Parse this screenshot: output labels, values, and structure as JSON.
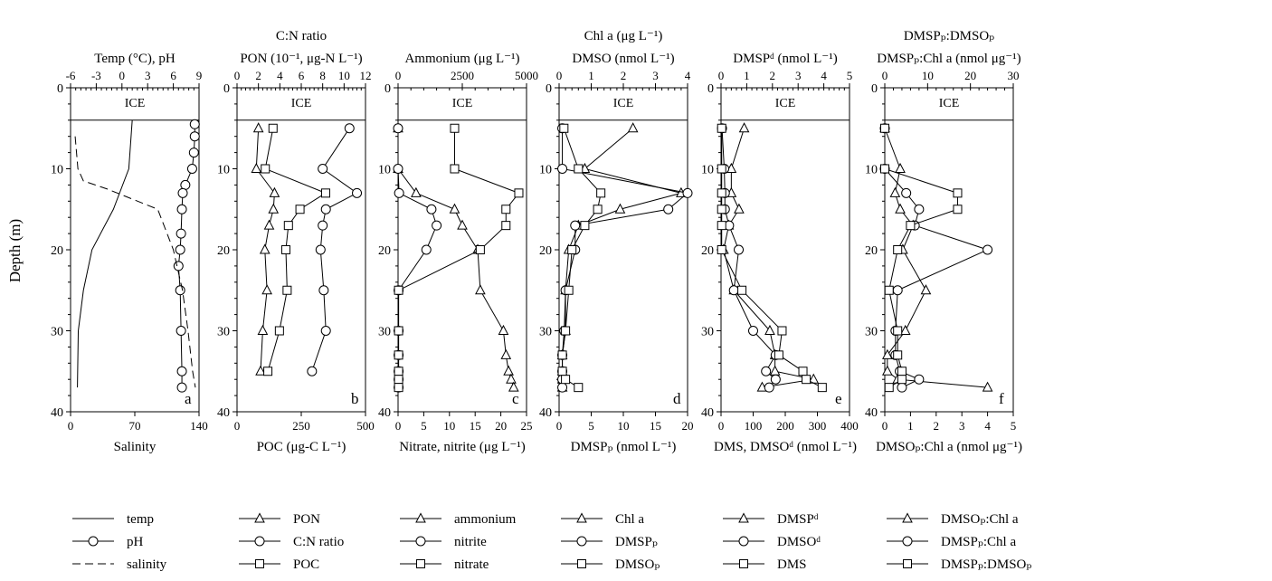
{
  "shared": {
    "depth_label": "Depth (m)",
    "depth_ticks": [
      0,
      10,
      20,
      30,
      40
    ],
    "ylim": [
      0,
      40
    ],
    "ice_label": "ICE",
    "ice_depth": 4
  },
  "chart_data": [
    {
      "id": "a",
      "type": "line",
      "panel_label": "a",
      "top_labels": [
        "Temp (°C), pH"
      ],
      "bottom_label": "Salinity",
      "top_axis": {
        "min": -6,
        "max": 9,
        "ticks": [
          -6,
          -3,
          0,
          3,
          6,
          9
        ]
      },
      "bottom_axis": {
        "min": 0,
        "max": 140,
        "ticks": [
          0,
          70,
          140
        ]
      },
      "series": [
        {
          "name": "temp",
          "marker": "none",
          "dash": false,
          "axis": "top",
          "x": [
            1.2,
            0.8,
            -1.0,
            -3.5,
            -4.5,
            -5.1,
            -5.2
          ],
          "y": [
            4,
            10,
            15,
            20,
            25,
            30,
            37
          ]
        },
        {
          "name": "pH",
          "marker": "circle",
          "dash": false,
          "axis": "top",
          "x": [
            8.5,
            8.5,
            8.4,
            8.2,
            7.4,
            7.1,
            7.0,
            6.9,
            6.8,
            6.6,
            6.8,
            6.9,
            7.0,
            7.0
          ],
          "y": [
            4.5,
            6,
            8,
            10,
            12,
            13,
            15,
            18,
            20,
            22,
            25,
            30,
            35,
            37
          ]
        },
        {
          "name": "salinity",
          "marker": "none",
          "dash": true,
          "axis": "bottom",
          "x": [
            5,
            8,
            14,
            40,
            95,
            112,
            122,
            128,
            133,
            136
          ],
          "y": [
            6,
            10,
            11.5,
            12.5,
            15,
            20,
            25,
            30,
            35,
            37
          ]
        }
      ]
    },
    {
      "id": "b",
      "type": "line",
      "panel_label": "b",
      "top_labels": [
        "C:N ratio",
        "PON (10⁻¹, μg-N L⁻¹)"
      ],
      "bottom_label": "POC (μg-C L⁻¹)",
      "top_axis": {
        "min": 0,
        "max": 12,
        "ticks": [
          0,
          2,
          4,
          6,
          8,
          10,
          12
        ]
      },
      "bottom_axis": {
        "min": 0,
        "max": 500,
        "ticks": [
          0,
          250,
          500
        ]
      },
      "series": [
        {
          "name": "PON",
          "marker": "triangle",
          "axis": "top",
          "x": [
            2.0,
            1.8,
            3.5,
            3.4,
            3.0,
            2.6,
            2.8,
            2.4,
            2.2
          ],
          "y": [
            5,
            10,
            13,
            15,
            17,
            20,
            25,
            30,
            35
          ]
        },
        {
          "name": "C:N ratio",
          "marker": "circle",
          "axis": "top",
          "x": [
            10.5,
            8.0,
            11.2,
            8.3,
            8.0,
            7.8,
            8.1,
            8.3,
            7.0
          ],
          "y": [
            5,
            10,
            13,
            15,
            17,
            20,
            25,
            30,
            35
          ]
        },
        {
          "name": "POC",
          "marker": "square",
          "axis": "bottom",
          "x": [
            140,
            110,
            345,
            245,
            200,
            190,
            195,
            165,
            120
          ],
          "y": [
            5,
            10,
            13,
            15,
            17,
            20,
            25,
            30,
            35
          ]
        }
      ]
    },
    {
      "id": "c",
      "type": "line",
      "panel_label": "c",
      "top_labels": [
        "Ammonium (μg L⁻¹)"
      ],
      "bottom_label": "Nitrate, nitrite (μg L⁻¹)",
      "top_axis": {
        "min": 0,
        "max": 5000,
        "ticks": [
          0,
          2500,
          5000
        ]
      },
      "bottom_axis": {
        "min": 0,
        "max": 25,
        "ticks": [
          0,
          5,
          10,
          15,
          20,
          25
        ]
      },
      "series": [
        {
          "name": "ammonium",
          "marker": "triangle",
          "axis": "top",
          "x": [
            0,
            0,
            700,
            2200,
            2500,
            3100,
            3200,
            4100,
            4200,
            4300,
            4400,
            4500
          ],
          "y": [
            5,
            10,
            13,
            15,
            17,
            20,
            25,
            30,
            33,
            35,
            36,
            37
          ]
        },
        {
          "name": "nitrite",
          "marker": "circle",
          "axis": "bottom",
          "x": [
            0,
            0,
            0.2,
            6.5,
            7.5,
            5.5,
            0.1,
            0.1,
            0.1,
            0.1,
            0.1,
            0.1
          ],
          "y": [
            5,
            10,
            13,
            15,
            17,
            20,
            25,
            30,
            33,
            35,
            36,
            37
          ]
        },
        {
          "name": "nitrate",
          "marker": "square",
          "axis": "bottom",
          "x": [
            11,
            11,
            23.5,
            21,
            21,
            16,
            0.1,
            0.1,
            0.1,
            0.1,
            0.1,
            0.1
          ],
          "y": [
            5,
            10,
            13,
            15,
            17,
            20,
            25,
            30,
            33,
            35,
            36,
            37
          ]
        }
      ]
    },
    {
      "id": "d",
      "type": "line",
      "panel_label": "d",
      "top_labels": [
        "Chl a (μg L⁻¹)",
        "DMSO (nmol L⁻¹)"
      ],
      "bottom_label": "DMSPₚ (nmol L⁻¹)",
      "top_axis": {
        "min": 0,
        "max": 4,
        "ticks": [
          0,
          1,
          2,
          3,
          4
        ]
      },
      "bottom_axis": {
        "min": 0,
        "max": 20,
        "ticks": [
          0,
          5,
          10,
          15,
          20
        ]
      },
      "series": [
        {
          "name": "Chl a",
          "marker": "triangle",
          "axis": "top",
          "x": [
            2.3,
            0.8,
            3.8,
            1.9,
            0.6,
            0.3,
            0.2,
            0.2,
            0.1,
            0.1,
            0.1,
            0.1
          ],
          "y": [
            5,
            10,
            13,
            15,
            17,
            20,
            25,
            30,
            33,
            35,
            36,
            37
          ]
        },
        {
          "name": "DMSPₚ",
          "marker": "circle",
          "axis": "bottom",
          "x": [
            0.5,
            0.5,
            20,
            17,
            2.5,
            2.5,
            1.0,
            0.8,
            0.5,
            0.5,
            0.5,
            0.5
          ],
          "y": [
            5,
            10,
            13,
            15,
            17,
            20,
            25,
            30,
            33,
            35,
            36,
            37
          ]
        },
        {
          "name": "DMSOₚ",
          "marker": "square",
          "axis": "top",
          "x": [
            0.15,
            0.6,
            1.3,
            1.2,
            0.8,
            0.4,
            0.3,
            0.2,
            0.1,
            0.1,
            0.2,
            0.6
          ],
          "y": [
            5,
            10,
            13,
            15,
            17,
            20,
            25,
            30,
            33,
            35,
            36,
            37
          ]
        }
      ]
    },
    {
      "id": "e",
      "type": "line",
      "panel_label": "e",
      "top_labels": [
        "DMSPᵈ (nmol L⁻¹)"
      ],
      "bottom_label": "DMS, DMSOᵈ (nmol L⁻¹)",
      "top_axis": {
        "min": 0,
        "max": 5,
        "ticks": [
          0,
          1,
          2,
          3,
          4,
          5
        ]
      },
      "bottom_axis": {
        "min": 0,
        "max": 400,
        "ticks": [
          0,
          100,
          200,
          300,
          400
        ]
      },
      "series": [
        {
          "name": "DMSPᵈ",
          "marker": "triangle",
          "axis": "top",
          "x": [
            0.9,
            0.4,
            0.4,
            0.7,
            0.3,
            0.1,
            0.5,
            1.9,
            2.1,
            2.1,
            3.6,
            1.6
          ],
          "y": [
            5,
            10,
            13,
            15,
            17,
            20,
            25,
            30,
            33,
            35,
            36,
            37
          ]
        },
        {
          "name": "DMSOᵈ",
          "marker": "circle",
          "axis": "bottom",
          "x": [
            3,
            10,
            12,
            12,
            25,
            55,
            40,
            100,
            170,
            140,
            170,
            150
          ],
          "y": [
            5,
            10,
            13,
            15,
            17,
            20,
            25,
            30,
            33,
            35,
            36,
            37
          ]
        },
        {
          "name": "DMS",
          "marker": "square",
          "axis": "bottom",
          "x": [
            2,
            2,
            2,
            2,
            2,
            2,
            65,
            190,
            180,
            255,
            265,
            315
          ],
          "y": [
            5,
            10,
            13,
            15,
            17,
            20,
            25,
            30,
            33,
            35,
            36,
            37
          ]
        }
      ]
    },
    {
      "id": "f",
      "type": "line",
      "panel_label": "f",
      "top_labels": [
        "DMSPₚ:DMSOₚ",
        "DMSPₚ:Chl a (nmol μg⁻¹)"
      ],
      "bottom_label": "DMSOₚ:Chl a (nmol μg⁻¹)",
      "top_axis": {
        "min": 0,
        "max": 30,
        "ticks": [
          0,
          10,
          20,
          30
        ]
      },
      "bottom_axis": {
        "min": 0,
        "max": 5,
        "ticks": [
          0,
          1,
          2,
          3,
          4,
          5
        ]
      },
      "series": [
        {
          "name": "DMSOₚ:Chl a",
          "marker": "triangle",
          "axis": "bottom",
          "x": [
            0,
            0.6,
            0.4,
            0.6,
            1.1,
            0.7,
            1.6,
            0.8,
            0.1,
            0.1,
            0.5,
            4.0
          ],
          "y": [
            5,
            10,
            13,
            15,
            17,
            20,
            25,
            30,
            33,
            35,
            36,
            37
          ]
        },
        {
          "name": "DMSPₚ:Chl a",
          "marker": "circle",
          "axis": "top",
          "x": [
            0,
            0,
            5,
            8,
            7,
            24,
            3,
            2.5,
            2.5,
            3.5,
            8,
            4
          ],
          "y": [
            5,
            10,
            13,
            15,
            17,
            20,
            25,
            30,
            33,
            35,
            36,
            37
          ]
        },
        {
          "name": "DMSPₚ:DMSOₚ",
          "marker": "square",
          "axis": "top",
          "x": [
            0,
            0,
            17,
            17,
            6,
            3,
            1,
            3,
            3,
            4,
            4,
            1
          ],
          "y": [
            5,
            10,
            13,
            15,
            17,
            20,
            25,
            30,
            33,
            35,
            36,
            37
          ]
        }
      ]
    }
  ],
  "legends": [
    {
      "entries": [
        {
          "name": "temp",
          "marker": "none",
          "dash": false
        },
        {
          "name": "pH",
          "marker": "circle",
          "dash": false
        },
        {
          "name": "salinity",
          "marker": "none",
          "dash": true
        }
      ]
    },
    {
      "entries": [
        {
          "name": "PON",
          "marker": "triangle"
        },
        {
          "name": "C:N ratio",
          "marker": "circle"
        },
        {
          "name": "POC",
          "marker": "square"
        }
      ]
    },
    {
      "entries": [
        {
          "name": "ammonium",
          "marker": "triangle"
        },
        {
          "name": "nitrite",
          "marker": "circle"
        },
        {
          "name": "nitrate",
          "marker": "square"
        }
      ]
    },
    {
      "entries": [
        {
          "name": "Chl a",
          "marker": "triangle"
        },
        {
          "name": "DMSPₚ",
          "marker": "circle"
        },
        {
          "name": "DMSOₚ",
          "marker": "square"
        }
      ]
    },
    {
      "entries": [
        {
          "name": "DMSPᵈ",
          "marker": "triangle"
        },
        {
          "name": "DMSOᵈ",
          "marker": "circle"
        },
        {
          "name": "DMS",
          "marker": "square"
        }
      ]
    },
    {
      "entries": [
        {
          "name": "DMSOₚ:Chl a",
          "marker": "triangle"
        },
        {
          "name": "DMSPₚ:Chl a",
          "marker": "circle"
        },
        {
          "name": "DMSPₚ:DMSOₚ",
          "marker": "square"
        }
      ]
    }
  ]
}
